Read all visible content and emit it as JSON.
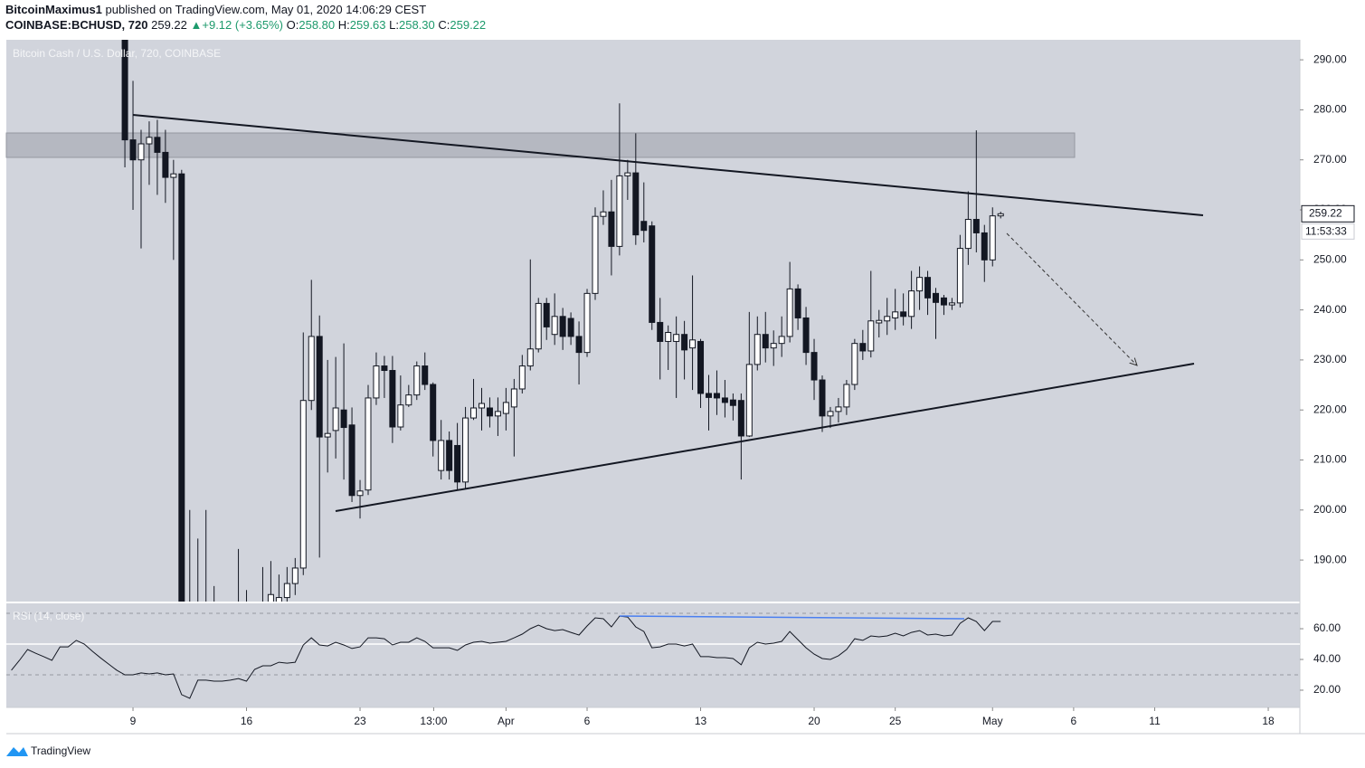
{
  "header": {
    "publisher": "BitcoinMaximus1",
    "published": "published on TradingView.com, May 01, 2020 14:06:29 CEST",
    "symbol": "COINBASE:BCHUSD, 720",
    "last": "259.22",
    "arrow": "▲",
    "change": "+9.12 (+3.65%)",
    "o_key": "O:",
    "o": "258.80",
    "h_key": "H:",
    "h": "259.63",
    "l_key": "L:",
    "l": "258.30",
    "c_key": "C:",
    "c": "259.22"
  },
  "chart_data": [
    {
      "type": "candlestick",
      "title": "Bitcoin Cash / U.S. Dollar, 720, COINBASE",
      "up_color": "#ffffff",
      "down_color": "#131722",
      "xlim": [
        1.19,
        80.95
      ],
      "xticks": [
        9,
        16,
        23,
        {
          "value": 27.54,
          "label": "13:00"
        },
        {
          "value": 32,
          "label": "Apr"
        },
        {
          "value": 37,
          "label": "6"
        },
        {
          "value": 44,
          "label": "13"
        },
        {
          "value": 51,
          "label": "20"
        },
        {
          "value": 56,
          "label": "25"
        },
        {
          "value": 62,
          "label": "May"
        },
        {
          "value": 67,
          "label": "6"
        },
        {
          "value": 72,
          "label": "11"
        },
        {
          "value": 79,
          "label": "18"
        }
      ],
      "ylim": [
        181.7,
        294.0
      ],
      "yticks": [
        {
          "value": 190,
          "label": "190.00"
        },
        {
          "value": 200,
          "label": "200.00"
        },
        {
          "value": 210,
          "label": "210.00"
        },
        {
          "value": 220,
          "label": "220.00"
        },
        {
          "value": 230,
          "label": "230.00"
        },
        {
          "value": 240,
          "label": "240.00"
        },
        {
          "value": 250,
          "label": "250.00"
        },
        {
          "value": 260,
          "label": "260.00"
        },
        {
          "value": 270,
          "label": "270.00"
        },
        {
          "value": 280,
          "label": "280.00"
        },
        {
          "value": 290,
          "label": "290.00"
        }
      ],
      "grid": false,
      "last_label": "259.22",
      "countdown": "11:53:33",
      "x": [
        8.5,
        9,
        9.5,
        10,
        10.5,
        11,
        11.5,
        12,
        12.5,
        13,
        13.5,
        14,
        14.5,
        15,
        15.5,
        16,
        16.5,
        17,
        17.5,
        18,
        18.5,
        19,
        19.5,
        20,
        20.5,
        21,
        21.5,
        22,
        22.5,
        23,
        23.5,
        24,
        24.5,
        25,
        25.5,
        26,
        26.5,
        27,
        27.5,
        28,
        28.5,
        29,
        29.5,
        30,
        30.5,
        31,
        31.5,
        32,
        32.5,
        33,
        33.5,
        34,
        34.5,
        35,
        35.5,
        36,
        36.5,
        37,
        37.5,
        38,
        38.5,
        39,
        39.5,
        40,
        40.5,
        41,
        41.5,
        42,
        42.5,
        43,
        43.5,
        44,
        44.5,
        45,
        45.5,
        46,
        46.5,
        47,
        47.5,
        48,
        48.5,
        49,
        49.5,
        50,
        50.5,
        51,
        51.5,
        52,
        52.5,
        53,
        53.5,
        54,
        54.5,
        55,
        55.5,
        56,
        56.5,
        57,
        57.5,
        58,
        58.5,
        59,
        59.5,
        60,
        60.5,
        61,
        61.5,
        62,
        62.5
      ],
      "open": [
        300,
        274,
        270,
        273.2,
        274.5,
        271.5,
        266.5,
        267.2,
        172,
        160,
        170,
        172,
        170,
        168,
        165,
        170,
        167,
        163,
        175,
        180,
        182.5,
        185.3,
        188.4,
        221.9,
        234.7,
        214.6,
        215.9,
        220,
        217,
        202.9,
        204,
        222.4,
        228.8,
        227.9,
        216.6,
        221,
        223,
        228.8,
        225.1,
        207.9,
        213.9,
        212.9,
        205.6,
        218.4,
        220.4,
        220.4,
        218.8,
        219.3,
        220.6,
        224.2,
        228.8,
        232.2,
        241.3,
        235.1,
        238.7,
        238.3,
        234.7,
        231.5,
        243.3,
        258.7,
        259.6,
        252.7,
        266.8,
        267.4,
        257.7,
        256.8,
        237.5,
        233.7,
        233.7,
        235.1,
        232.4,
        233.7,
        223.3,
        223.3,
        222.4,
        222,
        221.9,
        214.8,
        229.1,
        235.1,
        232.4,
        233.3,
        234.7,
        244.2,
        238.4,
        231.5,
        226,
        218.8,
        219.7,
        220.6,
        225.1,
        233.3,
        231.8,
        237.4,
        237.8,
        238.4,
        239.6,
        238.7,
        243.8,
        246.5,
        243.3,
        242.4,
        241,
        241.4,
        252.3,
        258.1,
        255.4,
        250,
        258.8
      ],
      "high": [
        303,
        285.8,
        276,
        277.7,
        278,
        276,
        270,
        268,
        200,
        194.3,
        200,
        184.8,
        179,
        178,
        192.2,
        184,
        180,
        188.6,
        189.8,
        187.1,
        188.6,
        190.4,
        235.5,
        246,
        238.9,
        230,
        230.6,
        233.3,
        220.5,
        206,
        225,
        231.5,
        230.8,
        230.8,
        226.9,
        225,
        229.7,
        231.5,
        225.5,
        218,
        215.7,
        217.4,
        220.6,
        226.2,
        224.4,
        222.5,
        222.5,
        224.4,
        226.2,
        231,
        250.1,
        242.4,
        242.4,
        243.3,
        240.4,
        239.5,
        237.7,
        244.2,
        260.5,
        263.9,
        266,
        281.3,
        270,
        275.3,
        265.5,
        257.7,
        242.4,
        236.9,
        238.7,
        237.8,
        246.9,
        234.2,
        227,
        227.9,
        226,
        223.3,
        223.3,
        239.6,
        238.7,
        239.6,
        235.9,
        238.7,
        249.6,
        245.1,
        240.6,
        234.2,
        226.9,
        220.6,
        222.4,
        226,
        234.2,
        236,
        247.8,
        240,
        242.4,
        244.2,
        243.3,
        247.8,
        248.7,
        247.8,
        244.4,
        243,
        242.4,
        255,
        263.7,
        275.9,
        257,
        260.5,
        259.63
      ],
      "low": [
        268.5,
        260,
        252.3,
        265,
        263,
        261.4,
        250,
        165,
        150,
        150,
        160,
        165,
        162,
        160,
        158,
        162,
        155,
        158,
        172,
        176,
        180,
        183,
        187,
        220,
        190.5,
        207.5,
        210.3,
        206.1,
        201.6,
        198.3,
        203,
        221,
        222.4,
        213.4,
        215.9,
        220.6,
        222,
        224,
        210.7,
        206.1,
        206.1,
        204.1,
        204.4,
        218,
        215.9,
        216.5,
        214.8,
        215.9,
        210.7,
        223.3,
        227.9,
        231.5,
        234,
        233,
        232,
        233,
        225.1,
        230.6,
        242,
        257,
        246.9,
        250.9,
        262,
        253,
        253.5,
        236,
        226.1,
        228,
        222.4,
        226.1,
        224,
        220.4,
        215.9,
        219,
        218.5,
        217.9,
        206.1,
        214.6,
        227.9,
        229.5,
        228.8,
        230.6,
        233.5,
        236,
        229,
        222,
        215.6,
        216.4,
        217.5,
        219,
        224,
        230,
        230.5,
        234.5,
        235,
        236,
        236.9,
        236.2,
        240,
        239,
        234.2,
        239,
        240,
        240.5,
        249,
        251.5,
        245.6,
        248.7,
        258.3
      ],
      "close": [
        274,
        270,
        273.2,
        274.5,
        271.5,
        266.5,
        267.2,
        172,
        160,
        170,
        172,
        170,
        168,
        165,
        170,
        167,
        163,
        175,
        183.1,
        182.5,
        185.3,
        188.4,
        221.9,
        234.7,
        214.6,
        215.3,
        220.4,
        216.5,
        202.9,
        203.8,
        222.4,
        228.8,
        227.9,
        216.6,
        221,
        223,
        228.8,
        225.1,
        213.9,
        213.9,
        207.9,
        205.6,
        218.4,
        220.4,
        221.3,
        218.8,
        219.7,
        221.5,
        224.2,
        228.8,
        232.2,
        241.3,
        236.6,
        238.7,
        234.7,
        234.7,
        231.5,
        243.3,
        258.7,
        259.6,
        252.7,
        266.8,
        267.4,
        255,
        255.9,
        237.5,
        233.7,
        235.5,
        235.1,
        232,
        234,
        223.3,
        222.5,
        222.4,
        221.5,
        220.9,
        214.8,
        229.1,
        235.1,
        232.4,
        233.3,
        234.7,
        244.2,
        238.4,
        231.5,
        226,
        218.8,
        219.7,
        220.6,
        225.1,
        233.3,
        231.8,
        237.8,
        237.9,
        238.7,
        239.6,
        238.7,
        243.8,
        246.5,
        242.4,
        241.5,
        241,
        241.4,
        252.3,
        258.1,
        255.4,
        250,
        258.8,
        259.22
      ]
    },
    {
      "type": "line",
      "title": "RSI (14, close)",
      "color": "#131722",
      "xlim": [
        1.19,
        80.95
      ],
      "ylim": [
        8.8,
        76.5
      ],
      "yticks": [
        {
          "value": 20,
          "label": "20.00"
        },
        {
          "value": 40,
          "label": "40.00"
        },
        {
          "value": 60,
          "label": "60.00"
        }
      ],
      "bands": [
        70,
        30
      ],
      "midline": 50,
      "x": [
        1.5,
        2,
        2.5,
        3,
        3.5,
        4,
        4.5,
        5,
        5.5,
        6,
        6.5,
        7,
        7.5,
        8,
        8.5,
        9,
        9.5,
        10,
        10.5,
        11,
        11.5,
        12,
        12.5,
        13,
        13.5,
        14,
        14.5,
        15,
        15.5,
        16,
        16.5,
        17,
        17.5,
        18,
        18.5,
        19,
        19.5,
        20,
        20.5,
        21,
        21.5,
        22,
        22.5,
        23,
        23.5,
        24,
        24.5,
        25,
        25.5,
        26,
        26.5,
        27,
        27.5,
        28,
        28.5,
        29,
        29.5,
        30,
        30.5,
        31,
        31.5,
        32,
        32.5,
        33,
        33.5,
        34,
        34.5,
        35,
        35.5,
        36,
        36.5,
        37,
        37.5,
        38,
        38.5,
        39,
        39.5,
        40,
        40.5,
        41,
        41.5,
        42,
        42.5,
        43,
        43.5,
        44,
        44.5,
        45,
        45.5,
        46,
        46.5,
        47,
        47.5,
        48,
        48.5,
        49,
        49.5,
        50,
        50.5,
        51,
        51.5,
        52,
        52.5,
        53,
        53.5,
        54,
        54.5,
        55,
        55.5,
        56,
        56.5,
        57,
        57.5,
        58,
        58.5,
        59,
        59.5,
        60,
        60.5,
        61,
        61.5,
        62,
        62.5
      ],
      "values": [
        33,
        39.4,
        46.5,
        44,
        41.8,
        39.4,
        48.2,
        48.2,
        52.4,
        50,
        45.3,
        41,
        37,
        33,
        30,
        30,
        31.2,
        30.6,
        31.2,
        30,
        30.6,
        17.1,
        14.7,
        26.5,
        26.5,
        25.9,
        25.9,
        26.5,
        27.6,
        25.9,
        33.5,
        35.9,
        35.9,
        38.2,
        37.6,
        38.2,
        49.4,
        54.1,
        49.4,
        48.8,
        51.2,
        49.4,
        47.1,
        48.2,
        54.1,
        54.1,
        53.5,
        49.4,
        51.2,
        51.2,
        54.1,
        51.8,
        47.6,
        47.6,
        47.6,
        45.9,
        49.4,
        51.2,
        51.8,
        50.6,
        51.2,
        51.8,
        54.1,
        56.5,
        60,
        62.4,
        60,
        58.8,
        59.4,
        57.6,
        55.9,
        61.8,
        67.1,
        66.5,
        61.2,
        68.2,
        67.6,
        61.2,
        58.2,
        47.6,
        48.2,
        50,
        50,
        48.8,
        50,
        41.8,
        41.8,
        41.2,
        41.2,
        40.6,
        36.5,
        47.6,
        51.2,
        50,
        50.6,
        51.8,
        58.2,
        52.9,
        47.6,
        43.5,
        40.6,
        40,
        42.4,
        46.5,
        53.5,
        52.4,
        55.3,
        54.7,
        55.3,
        57.1,
        55.3,
        57.6,
        58.8,
        55.9,
        56.5,
        55.3,
        55.9,
        63.5,
        67.1,
        64.7,
        58.8,
        64.7,
        64.7
      ]
    }
  ],
  "footer": {
    "brand": "TradingView"
  }
}
